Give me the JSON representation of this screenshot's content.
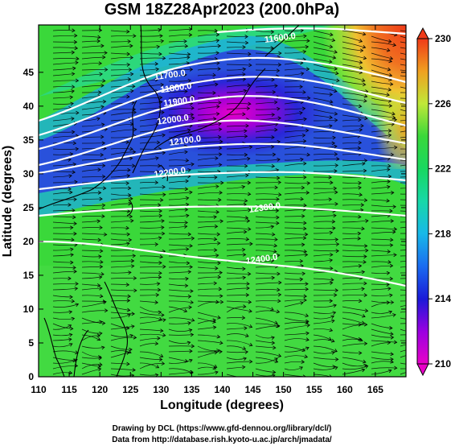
{
  "title": "GSM 18Z28Apr2023 (200.0hPa)",
  "xlabel": "Longitude (degrees)",
  "ylabel": "Latitude  (degrees)",
  "x_ticks": [
    "110",
    "115",
    "120",
    "125",
    "130",
    "135",
    "140",
    "145",
    "150",
    "155",
    "160",
    "165"
  ],
  "y_ticks": [
    "0",
    "5",
    "10",
    "15",
    "20",
    "25",
    "30",
    "35",
    "40",
    "45"
  ],
  "x_range": [
    110,
    170
  ],
  "y_range": [
    0,
    52
  ],
  "colorbar": {
    "ticks": [
      "210",
      "214",
      "218",
      "222",
      "226",
      "230"
    ],
    "range": [
      210,
      230
    ],
    "colors": [
      "#e800c8",
      "#9a00e0",
      "#1a1ad8",
      "#1a8cf0",
      "#18d8d0",
      "#18d878",
      "#3ad83a",
      "#a8e838",
      "#f0e030",
      "#f0a020",
      "#f04818"
    ]
  },
  "contours": [
    {
      "label": "11600.0",
      "lon": 149.5,
      "lat": 49.7
    },
    {
      "label": "11700.0",
      "lon": 131.5,
      "lat": 44.2
    },
    {
      "label": "11800.0",
      "lon": 132.5,
      "lat": 42.3
    },
    {
      "label": "11900.0",
      "lon": 133.0,
      "lat": 40.3
    },
    {
      "label": "12000.0",
      "lon": 132.0,
      "lat": 37.6
    },
    {
      "label": "12100.0",
      "lon": 134.0,
      "lat": 34.5
    },
    {
      "label": "12200.0",
      "lon": 131.5,
      "lat": 29.8
    },
    {
      "label": "12300.0",
      "lon": 147.0,
      "lat": 24.6
    },
    {
      "label": "12400.0",
      "lon": 146.5,
      "lat": 17.0
    }
  ],
  "credits": [
    "Drawing by DCL (https://www.gfd-dennou.org/library/dcl/)",
    "Data from http://database.rish.kyoto-u.ac.jp/arch/jmadata/"
  ]
}
